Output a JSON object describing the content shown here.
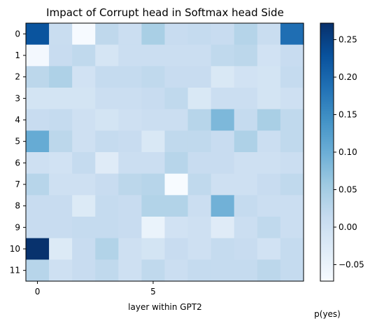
{
  "chart_data": {
    "type": "heatmap",
    "title": "Impact of Corrupt head in Softmax head Side",
    "xlabel": "layer within GPT2",
    "ylabel": "",
    "x_ticks": [
      0,
      5
    ],
    "y_ticks": [
      0,
      1,
      2,
      3,
      4,
      5,
      6,
      7,
      8,
      9,
      10,
      11
    ],
    "n_rows": 12,
    "n_cols": 12,
    "colormap": "Blues",
    "vmin": -0.072,
    "vmax": 0.272,
    "colorbar_label": "p(yes)",
    "colorbar_ticks": [
      -0.05,
      0.0,
      0.05,
      0.1,
      0.15,
      0.2,
      0.25
    ],
    "colorbar_tick_labels": [
      "−0.05",
      "0.00",
      "0.05",
      "0.10",
      "0.15",
      "0.20",
      "0.25"
    ],
    "values": [
      [
        0.225,
        0.008,
        -0.07,
        0.022,
        0.005,
        0.045,
        0.01,
        0.015,
        0.01,
        0.032,
        0.008,
        0.19
      ],
      [
        -0.065,
        0.01,
        0.02,
        -0.012,
        0.005,
        0.005,
        0.005,
        0.005,
        0.02,
        0.025,
        -0.005,
        0.01
      ],
      [
        0.025,
        0.04,
        -0.005,
        0.015,
        0.015,
        0.02,
        0.01,
        0.01,
        -0.02,
        -0.005,
        -0.01,
        0.015
      ],
      [
        -0.01,
        -0.01,
        -0.01,
        0.005,
        0.005,
        0.01,
        0.02,
        -0.02,
        0.005,
        0.005,
        -0.01,
        0.0
      ],
      [
        0.01,
        0.015,
        0.0,
        -0.01,
        0.0,
        0.005,
        0.005,
        0.03,
        0.085,
        0.015,
        0.045,
        0.02
      ],
      [
        0.105,
        0.025,
        0.0,
        0.015,
        0.01,
        -0.02,
        0.02,
        0.02,
        0.01,
        0.04,
        0.005,
        0.02
      ],
      [
        0.0,
        -0.005,
        0.015,
        -0.03,
        0.005,
        0.005,
        0.03,
        0.01,
        0.01,
        0.0,
        0.0,
        0.005
      ],
      [
        0.03,
        0.0,
        0.0,
        0.01,
        0.025,
        0.03,
        -0.072,
        0.02,
        0.0,
        0.0,
        0.01,
        0.02
      ],
      [
        0.01,
        0.01,
        -0.025,
        0.015,
        0.01,
        0.035,
        0.035,
        0.005,
        0.095,
        0.015,
        0.005,
        0.005
      ],
      [
        0.01,
        0.01,
        0.015,
        0.015,
        0.01,
        -0.05,
        -0.005,
        0.0,
        -0.03,
        0.005,
        0.02,
        0.005
      ],
      [
        0.27,
        -0.025,
        0.01,
        0.035,
        0.0,
        -0.01,
        0.01,
        0.0,
        0.015,
        0.01,
        -0.005,
        0.015
      ],
      [
        0.03,
        0.0,
        0.01,
        0.02,
        0.0,
        0.02,
        0.005,
        0.015,
        0.015,
        0.015,
        0.025,
        0.015
      ]
    ]
  }
}
